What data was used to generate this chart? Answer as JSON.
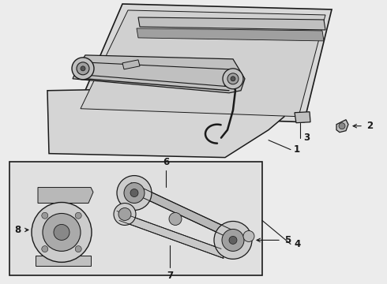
{
  "bg_color": "#ececec",
  "line_color": "#1a1a1a",
  "fill_light": "#d8d8d8",
  "fill_medium": "#c0c0c0",
  "fill_dark": "#a0a0a0",
  "fill_box": "#e0e0e0",
  "figsize": [
    4.9,
    3.6
  ],
  "dpi": 100
}
